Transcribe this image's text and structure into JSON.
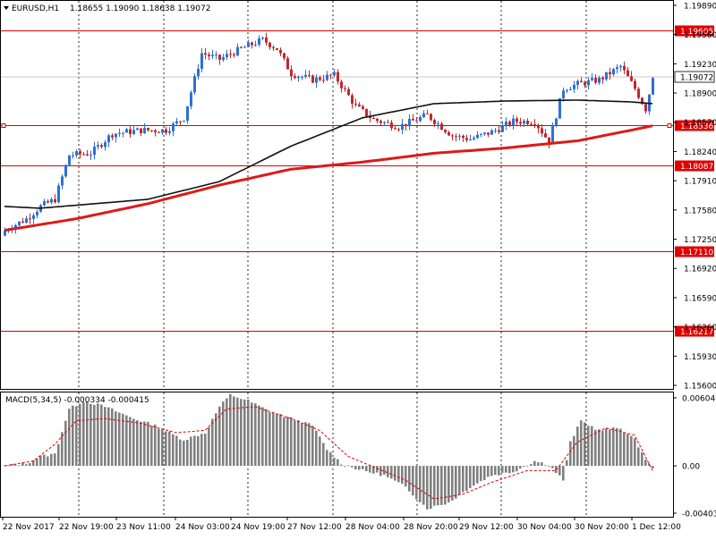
{
  "header": {
    "symbol": "EURUSD,H1",
    "ohlc": "1.18655 1.19090 1.18638 1.19072"
  },
  "macd_header": "MACD(5,34,5) -0.000334 -0.000415",
  "colors": {
    "bull": "#2f6fd6",
    "bear": "#c0282d",
    "level_line": "#e00000",
    "ma_fast": "#101010",
    "ma_slow": "#dd1a1a",
    "macd_hist": "#808080",
    "macd_signal": "#e00000",
    "grid": "#000000"
  },
  "chart_data": [
    {
      "type": "candlestick",
      "title": "EURUSD,H1",
      "ylim": [
        1.1556,
        1.1995
      ],
      "y_ticks": [
        "1.19890",
        "1.19560",
        "1.19230",
        "1.18900",
        "1.18570",
        "1.18240",
        "1.17910",
        "1.17580",
        "1.17250",
        "1.16920",
        "1.16590",
        "1.16260",
        "1.15930",
        "1.15600"
      ],
      "current_price": "1.19072",
      "levels": [
        "1.19605",
        "1.18536",
        "1.18087",
        "1.17110",
        "1.16217"
      ],
      "x_ticks": [
        "22 Nov 2017",
        "22 Nov 19:00",
        "23 Nov 11:00",
        "24 Nov 03:00",
        "24 Nov 19:00",
        "27 Nov 12:00",
        "28 Nov 04:00",
        "28 Nov 20:00",
        "29 Nov 12:00",
        "30 Nov 04:00",
        "30 Nov 20:00",
        "1 Dec 12:00"
      ],
      "close_waypoints": [
        [
          0,
          1.1735
        ],
        [
          6,
          1.1748
        ],
        [
          10,
          1.1762
        ],
        [
          14,
          1.177
        ],
        [
          18,
          1.182
        ],
        [
          24,
          1.1822
        ],
        [
          30,
          1.1844
        ],
        [
          38,
          1.1848
        ],
        [
          45,
          1.1848
        ],
        [
          50,
          1.1862
        ],
        [
          55,
          1.1935
        ],
        [
          60,
          1.1928
        ],
        [
          66,
          1.194
        ],
        [
          72,
          1.195
        ],
        [
          76,
          1.194
        ],
        [
          80,
          1.1912
        ],
        [
          86,
          1.1905
        ],
        [
          92,
          1.191
        ],
        [
          98,
          1.1875
        ],
        [
          103,
          1.186
        ],
        [
          110,
          1.1852
        ],
        [
          118,
          1.1865
        ],
        [
          125,
          1.1842
        ],
        [
          130,
          1.1838
        ],
        [
          136,
          1.1846
        ],
        [
          142,
          1.1858
        ],
        [
          148,
          1.1858
        ],
        [
          152,
          1.1835
        ],
        [
          156,
          1.1895
        ],
        [
          160,
          1.19
        ],
        [
          166,
          1.1905
        ],
        [
          172,
          1.192
        ],
        [
          176,
          1.1895
        ],
        [
          179,
          1.1872
        ],
        [
          181,
          1.1907
        ]
      ],
      "ma_fast_waypoints": [
        [
          0,
          1.1762
        ],
        [
          10,
          1.176
        ],
        [
          40,
          1.177
        ],
        [
          60,
          1.179
        ],
        [
          80,
          1.183
        ],
        [
          100,
          1.1862
        ],
        [
          120,
          1.1878
        ],
        [
          140,
          1.1881
        ],
        [
          160,
          1.1882
        ],
        [
          175,
          1.188
        ],
        [
          181,
          1.1878
        ]
      ],
      "ma_slow_waypoints": [
        [
          0,
          1.1735
        ],
        [
          20,
          1.1748
        ],
        [
          40,
          1.1765
        ],
        [
          60,
          1.1786
        ],
        [
          80,
          1.1804
        ],
        [
          100,
          1.1812
        ],
        [
          120,
          1.1822
        ],
        [
          140,
          1.1828
        ],
        [
          160,
          1.1836
        ],
        [
          175,
          1.1848
        ],
        [
          181,
          1.1853
        ]
      ]
    },
    {
      "type": "macd",
      "title": "MACD(5,34,5)",
      "y_ticks": [
        "0.006046",
        "0.00",
        "-0.004037"
      ],
      "ylim": [
        -0.0043,
        0.0062
      ],
      "hist_waypoints": [
        [
          0,
          0.0
        ],
        [
          6,
          0.0002
        ],
        [
          10,
          0.0008
        ],
        [
          14,
          0.001
        ],
        [
          18,
          0.0048
        ],
        [
          22,
          0.0055
        ],
        [
          28,
          0.005
        ],
        [
          36,
          0.004
        ],
        [
          42,
          0.0034
        ],
        [
          50,
          0.0022
        ],
        [
          56,
          0.0028
        ],
        [
          60,
          0.005
        ],
        [
          63,
          0.006
        ],
        [
          68,
          0.0055
        ],
        [
          74,
          0.0046
        ],
        [
          80,
          0.004
        ],
        [
          86,
          0.0034
        ],
        [
          90,
          0.0014
        ],
        [
          94,
          0.0002
        ],
        [
          100,
          -0.0004
        ],
        [
          106,
          -0.0008
        ],
        [
          112,
          -0.0018
        ],
        [
          118,
          -0.0036
        ],
        [
          124,
          -0.0031
        ],
        [
          130,
          -0.0018
        ],
        [
          136,
          -0.0008
        ],
        [
          142,
          -0.0005
        ],
        [
          148,
          0.0004
        ],
        [
          152,
          0.0001
        ],
        [
          156,
          -0.0012
        ],
        [
          158,
          0.002
        ],
        [
          161,
          0.0038
        ],
        [
          166,
          0.003
        ],
        [
          172,
          0.0032
        ],
        [
          176,
          0.0022
        ],
        [
          179,
          0.0006
        ],
        [
          181,
          -0.0003
        ]
      ],
      "signal_waypoints": [
        [
          0,
          0.0
        ],
        [
          8,
          0.0004
        ],
        [
          14,
          0.0018
        ],
        [
          20,
          0.0038
        ],
        [
          28,
          0.004
        ],
        [
          38,
          0.0036
        ],
        [
          48,
          0.0028
        ],
        [
          56,
          0.003
        ],
        [
          62,
          0.0048
        ],
        [
          70,
          0.005
        ],
        [
          80,
          0.004
        ],
        [
          88,
          0.003
        ],
        [
          96,
          0.0008
        ],
        [
          104,
          -0.0002
        ],
        [
          112,
          -0.0012
        ],
        [
          120,
          -0.0028
        ],
        [
          128,
          -0.0024
        ],
        [
          136,
          -0.0014
        ],
        [
          146,
          -0.0004
        ],
        [
          154,
          -0.0004
        ],
        [
          160,
          0.002
        ],
        [
          168,
          0.0032
        ],
        [
          176,
          0.0026
        ],
        [
          181,
          -0.0004
        ]
      ]
    }
  ]
}
